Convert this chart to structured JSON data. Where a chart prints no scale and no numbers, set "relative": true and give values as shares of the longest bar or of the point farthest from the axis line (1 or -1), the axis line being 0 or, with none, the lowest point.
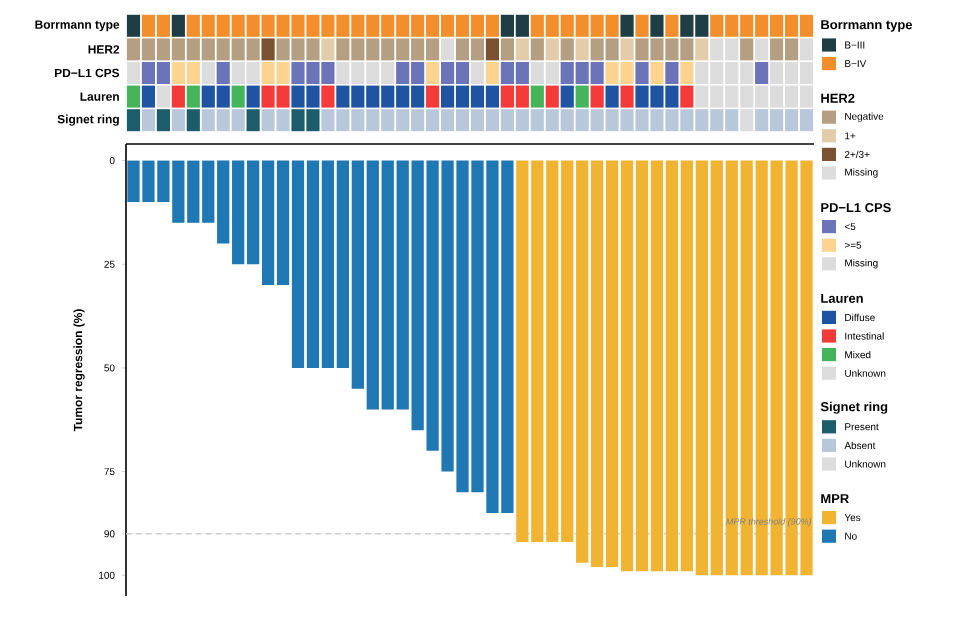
{
  "chart_data": [
    {
      "type": "bar",
      "stacked": true,
      "relative": true,
      "title": "Borrmann type",
      "categories": [
        null,
        null,
        null,
        null,
        null,
        null,
        null,
        null,
        null,
        null,
        null,
        null,
        null,
        null,
        null,
        null,
        null,
        null,
        null,
        null,
        null,
        null,
        null,
        null,
        null,
        null,
        null,
        null,
        null,
        null,
        null,
        null,
        null,
        null,
        null,
        null,
        null,
        null,
        null,
        null,
        null,
        null,
        null,
        null,
        null,
        null
      ],
      "legend_title": "Borrmann type",
      "legend": "right",
      "series": [
        {
          "name": "B−III",
          "color": "#1e3d45",
          "values": [
            1,
            null,
            null,
            1,
            null,
            null,
            null,
            null,
            null,
            null,
            null,
            null,
            null,
            null,
            null,
            null,
            null,
            null,
            null,
            null,
            null,
            null,
            null,
            null,
            null,
            1,
            1,
            null,
            null,
            null,
            null,
            null,
            null,
            1,
            null,
            1,
            null,
            1,
            1,
            null,
            null,
            null,
            null,
            null,
            null,
            null
          ]
        },
        {
          "name": "B−IV",
          "color": "#f28e2b",
          "values": [
            null,
            1,
            1,
            null,
            1,
            1,
            1,
            1,
            1,
            1,
            1,
            1,
            1,
            1,
            1,
            1,
            1,
            1,
            1,
            1,
            1,
            1,
            1,
            1,
            1,
            null,
            null,
            1,
            1,
            1,
            1,
            1,
            1,
            null,
            1,
            null,
            1,
            null,
            null,
            1,
            1,
            1,
            1,
            1,
            1,
            1
          ]
        }
      ]
    },
    {
      "type": "bar",
      "stacked": true,
      "relative": true,
      "title": "HER2",
      "categories": [
        null,
        null,
        null,
        null,
        null,
        null,
        null,
        null,
        null,
        null,
        null,
        null,
        null,
        null,
        null,
        null,
        null,
        null,
        null,
        null,
        null,
        null,
        null,
        null,
        null,
        null,
        null,
        null,
        null,
        null,
        null,
        null,
        null,
        null,
        null,
        null,
        null,
        null,
        null,
        null,
        null,
        null,
        null,
        null,
        null,
        null
      ],
      "legend_title": "HER2",
      "legend": "right",
      "series": [
        {
          "name": "Negative",
          "color": "#b59f82",
          "values": [
            1,
            1,
            1,
            1,
            1,
            1,
            1,
            1,
            1,
            null,
            1,
            1,
            1,
            null,
            1,
            1,
            1,
            1,
            1,
            1,
            1,
            null,
            1,
            1,
            null,
            1,
            null,
            1,
            null,
            1,
            null,
            1,
            1,
            null,
            1,
            1,
            1,
            1,
            null,
            null,
            null,
            1,
            null,
            1,
            1,
            null
          ]
        },
        {
          "name": "1+",
          "color": "#e3ccaa",
          "values": [
            null,
            null,
            null,
            null,
            null,
            null,
            null,
            null,
            null,
            null,
            null,
            null,
            null,
            1,
            null,
            null,
            null,
            null,
            null,
            null,
            null,
            null,
            null,
            null,
            null,
            null,
            1,
            null,
            1,
            null,
            1,
            null,
            null,
            1,
            null,
            null,
            null,
            null,
            1,
            null,
            null,
            null,
            null,
            null,
            null,
            null
          ]
        },
        {
          "name": "2+/3+",
          "color": "#7a5232",
          "values": [
            null,
            null,
            null,
            null,
            null,
            null,
            null,
            null,
            null,
            1,
            null,
            null,
            null,
            null,
            null,
            null,
            null,
            null,
            null,
            null,
            null,
            null,
            null,
            null,
            1,
            null,
            null,
            null,
            null,
            null,
            null,
            null,
            null,
            null,
            null,
            null,
            null,
            null,
            null,
            null,
            null,
            null,
            null,
            null,
            null,
            null
          ]
        },
        {
          "name": "Missing",
          "color": "#dcdcdc",
          "values": [
            null,
            null,
            null,
            null,
            null,
            null,
            null,
            null,
            null,
            null,
            null,
            null,
            null,
            null,
            null,
            null,
            null,
            null,
            null,
            null,
            null,
            1,
            null,
            null,
            null,
            null,
            null,
            null,
            null,
            null,
            null,
            null,
            null,
            null,
            null,
            null,
            null,
            null,
            null,
            1,
            1,
            null,
            1,
            null,
            null,
            1
          ]
        }
      ]
    },
    {
      "type": "bar",
      "stacked": true,
      "relative": true,
      "title": "PD−L1 CPS",
      "categories": [
        null,
        null,
        null,
        null,
        null,
        null,
        null,
        null,
        null,
        null,
        null,
        null,
        null,
        null,
        null,
        null,
        null,
        null,
        null,
        null,
        null,
        null,
        null,
        null,
        null,
        null,
        null,
        null,
        null,
        null,
        null,
        null,
        null,
        null,
        null,
        null,
        null,
        null,
        null,
        null,
        null,
        null,
        null,
        null,
        null,
        null
      ],
      "legend_title": "PD−L1 CPS",
      "legend": "right",
      "series": [
        {
          "name": "<5",
          "color": "#6b74b8",
          "values": [
            null,
            1,
            1,
            null,
            null,
            null,
            1,
            null,
            null,
            null,
            null,
            1,
            1,
            1,
            null,
            null,
            null,
            null,
            1,
            1,
            null,
            1,
            1,
            null,
            null,
            1,
            1,
            null,
            null,
            1,
            1,
            1,
            null,
            null,
            1,
            null,
            1,
            null,
            null,
            null,
            null,
            null,
            1,
            null,
            null,
            null
          ]
        },
        {
          "name": ">=5",
          "color": "#fcd38f",
          "values": [
            null,
            null,
            null,
            1,
            1,
            null,
            null,
            null,
            null,
            1,
            1,
            null,
            null,
            null,
            null,
            null,
            null,
            null,
            null,
            null,
            1,
            null,
            null,
            null,
            1,
            null,
            null,
            null,
            null,
            null,
            null,
            null,
            1,
            1,
            null,
            1,
            null,
            1,
            null,
            null,
            null,
            null,
            null,
            null,
            null,
            null
          ]
        },
        {
          "name": "Missing",
          "color": "#dcdcdc",
          "values": [
            1,
            null,
            null,
            null,
            null,
            1,
            null,
            1,
            1,
            null,
            null,
            null,
            null,
            null,
            1,
            1,
            1,
            1,
            null,
            null,
            null,
            null,
            null,
            1,
            null,
            null,
            null,
            1,
            1,
            null,
            null,
            null,
            null,
            null,
            null,
            null,
            null,
            null,
            1,
            1,
            1,
            1,
            null,
            1,
            1,
            1
          ]
        }
      ]
    },
    {
      "type": "bar",
      "stacked": true,
      "relative": true,
      "title": "Lauren",
      "categories": [
        null,
        null,
        null,
        null,
        null,
        null,
        null,
        null,
        null,
        null,
        null,
        null,
        null,
        null,
        null,
        null,
        null,
        null,
        null,
        null,
        null,
        null,
        null,
        null,
        null,
        null,
        null,
        null,
        null,
        null,
        null,
        null,
        null,
        null,
        null,
        null,
        null,
        null,
        null,
        null,
        null,
        null,
        null,
        null,
        null,
        null
      ],
      "legend_title": "Lauren",
      "legend": "right",
      "series": [
        {
          "name": "Diffuse",
          "color": "#1f54a3",
          "values": [
            null,
            1,
            null,
            null,
            null,
            1,
            1,
            null,
            1,
            null,
            null,
            1,
            1,
            null,
            1,
            1,
            1,
            1,
            1,
            1,
            null,
            1,
            1,
            1,
            1,
            null,
            null,
            null,
            null,
            1,
            null,
            null,
            1,
            null,
            1,
            1,
            1,
            null,
            null,
            null,
            null,
            null,
            null,
            null,
            null,
            null
          ]
        },
        {
          "name": "Intestinal",
          "color": "#f53a3a",
          "values": [
            null,
            null,
            null,
            1,
            null,
            null,
            null,
            null,
            null,
            1,
            1,
            null,
            null,
            1,
            null,
            null,
            null,
            null,
            null,
            null,
            1,
            null,
            null,
            null,
            null,
            1,
            1,
            null,
            1,
            null,
            null,
            1,
            null,
            1,
            null,
            null,
            null,
            1,
            null,
            null,
            null,
            null,
            null,
            null,
            null,
            null
          ]
        },
        {
          "name": "Mixed",
          "color": "#45b45a",
          "values": [
            1,
            null,
            null,
            null,
            1,
            null,
            null,
            1,
            null,
            null,
            null,
            null,
            null,
            null,
            null,
            null,
            null,
            null,
            null,
            null,
            null,
            null,
            null,
            null,
            null,
            null,
            null,
            1,
            null,
            null,
            1,
            null,
            null,
            null,
            null,
            null,
            null,
            null,
            null,
            null,
            null,
            null,
            null,
            null,
            null,
            null
          ]
        },
        {
          "name": "Unknown",
          "color": "#dcdcdc",
          "values": [
            null,
            null,
            1,
            null,
            null,
            null,
            null,
            null,
            null,
            null,
            null,
            null,
            null,
            null,
            null,
            null,
            null,
            null,
            null,
            null,
            null,
            null,
            null,
            null,
            null,
            null,
            null,
            null,
            null,
            null,
            null,
            null,
            null,
            null,
            null,
            null,
            null,
            null,
            1,
            1,
            1,
            1,
            1,
            1,
            1,
            1
          ]
        }
      ]
    },
    {
      "type": "bar",
      "stacked": true,
      "relative": true,
      "title": "Signet ring",
      "categories": [
        null,
        null,
        null,
        null,
        null,
        null,
        null,
        null,
        null,
        null,
        null,
        null,
        null,
        null,
        null,
        null,
        null,
        null,
        null,
        null,
        null,
        null,
        null,
        null,
        null,
        null,
        null,
        null,
        null,
        null,
        null,
        null,
        null,
        null,
        null,
        null,
        null,
        null,
        null,
        null,
        null,
        null,
        null,
        null,
        null,
        null
      ],
      "legend_title": "Signet ring",
      "legend": "right",
      "series": [
        {
          "name": "Present",
          "color": "#1d5c6a",
          "values": [
            1,
            null,
            1,
            null,
            1,
            null,
            null,
            null,
            1,
            null,
            null,
            1,
            1,
            null,
            null,
            null,
            null,
            null,
            null,
            null,
            null,
            null,
            null,
            null,
            null,
            null,
            null,
            null,
            null,
            null,
            null,
            null,
            null,
            null,
            null,
            null,
            null,
            null,
            null,
            null,
            null,
            null,
            null,
            null,
            null,
            null
          ]
        },
        {
          "name": "Absent",
          "color": "#b8c8da",
          "values": [
            null,
            1,
            null,
            1,
            null,
            1,
            1,
            1,
            null,
            1,
            1,
            null,
            null,
            1,
            1,
            1,
            1,
            1,
            1,
            1,
            1,
            1,
            1,
            1,
            1,
            1,
            1,
            1,
            1,
            1,
            1,
            1,
            1,
            1,
            1,
            1,
            1,
            1,
            1,
            1,
            1,
            null,
            1,
            1,
            1,
            1
          ]
        },
        {
          "name": "Unknown",
          "color": "#dcdcdc",
          "values": [
            null,
            null,
            null,
            null,
            null,
            null,
            null,
            null,
            null,
            null,
            null,
            null,
            null,
            null,
            null,
            null,
            null,
            null,
            null,
            null,
            null,
            null,
            null,
            null,
            null,
            null,
            null,
            null,
            null,
            null,
            null,
            null,
            null,
            null,
            null,
            null,
            null,
            null,
            null,
            null,
            null,
            1,
            null,
            null,
            null,
            null
          ]
        }
      ]
    },
    {
      "type": "bar",
      "categories": [
        null,
        null,
        null,
        null,
        null,
        null,
        null,
        null,
        null,
        null,
        null,
        null,
        null,
        null,
        null,
        null,
        null,
        null,
        null,
        null,
        null,
        null,
        null,
        null,
        null,
        null,
        null,
        null,
        null,
        null,
        null,
        null,
        null,
        null,
        null,
        null,
        null,
        null,
        null,
        null,
        null,
        null,
        null,
        null,
        null,
        null
      ],
      "ylabel": "Tumor regression (%)",
      "legend_title": "MPR",
      "legend": "right",
      "ylim": [
        105,
        -4
      ],
      "yticks": [
        0,
        25,
        50,
        75,
        90,
        100
      ],
      "series": [
        {
          "name": "Yes",
          "color": "#f0b432",
          "values": [
            null,
            null,
            null,
            null,
            null,
            null,
            null,
            null,
            null,
            null,
            null,
            null,
            null,
            null,
            null,
            null,
            null,
            null,
            null,
            null,
            null,
            null,
            null,
            null,
            null,
            null,
            92,
            92,
            92,
            92,
            97,
            98,
            98,
            99,
            99,
            99,
            99,
            99,
            100,
            100,
            100,
            100,
            100,
            100,
            100,
            100
          ]
        },
        {
          "name": "No",
          "color": "#1f77b4",
          "values": [
            10,
            10,
            10,
            15,
            15,
            15,
            20,
            25,
            25,
            30,
            30,
            50,
            50,
            50,
            50,
            55,
            60,
            60,
            60,
            65,
            70,
            75,
            80,
            80,
            85,
            85,
            null,
            null,
            null,
            null,
            null,
            null,
            null,
            null,
            null,
            null,
            null,
            null,
            null,
            null,
            null,
            null,
            null,
            null,
            null,
            null
          ]
        }
      ],
      "ref_lines": [
        {
          "axis": "y",
          "value": 90,
          "label": "MPR threshold (90%)",
          "color": "#c8cdd4",
          "line_style": "dashed"
        }
      ]
    }
  ]
}
